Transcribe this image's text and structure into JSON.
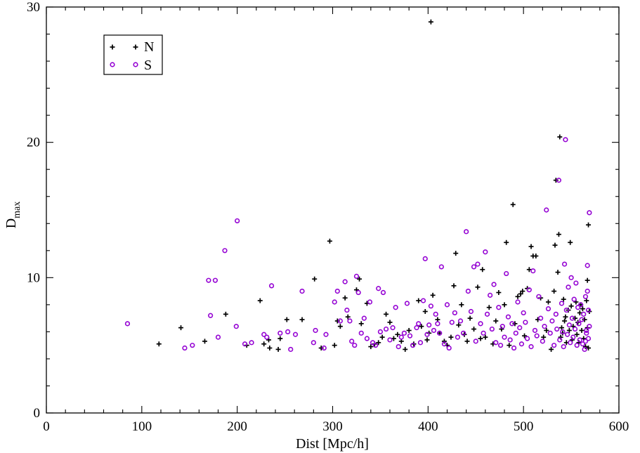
{
  "chart_data": {
    "type": "scatter",
    "title": "",
    "xlabel": "Dist [Mpc/h]",
    "ylabel": "D",
    "ylabel_sub": "max",
    "xlim": [
      0,
      600
    ],
    "ylim": [
      0,
      30
    ],
    "x_ticks": [
      0,
      100,
      200,
      300,
      400,
      500,
      600
    ],
    "y_ticks": [
      0,
      10,
      20,
      30
    ],
    "x_minor_step": 20,
    "y_minor_step": 2,
    "grid": false,
    "legend_position": "top-left",
    "series": [
      {
        "name": "N",
        "marker": "plus",
        "color": "#000000",
        "points": [
          [
            118,
            5.1
          ],
          [
            141,
            6.3
          ],
          [
            166,
            5.3
          ],
          [
            188,
            7.3
          ],
          [
            210,
            5.0
          ],
          [
            224,
            8.3
          ],
          [
            228,
            5.1
          ],
          [
            233,
            5.4
          ],
          [
            234,
            4.8
          ],
          [
            243,
            4.7
          ],
          [
            245,
            5.5
          ],
          [
            252,
            6.9
          ],
          [
            268,
            6.9
          ],
          [
            281,
            9.9
          ],
          [
            288,
            4.8
          ],
          [
            297,
            12.7
          ],
          [
            302,
            5.0
          ],
          [
            305,
            6.8
          ],
          [
            308,
            6.4
          ],
          [
            313,
            8.5
          ],
          [
            316,
            7.1
          ],
          [
            325,
            9.1
          ],
          [
            328,
            9.9
          ],
          [
            330,
            6.6
          ],
          [
            336,
            8.1
          ],
          [
            340,
            4.9
          ],
          [
            344,
            5.1
          ],
          [
            348,
            5.2
          ],
          [
            352,
            5.6
          ],
          [
            356,
            7.3
          ],
          [
            360,
            6.7
          ],
          [
            364,
            5.5
          ],
          [
            368,
            5.8
          ],
          [
            372,
            5.3
          ],
          [
            376,
            4.7
          ],
          [
            380,
            6.1
          ],
          [
            385,
            5.1
          ],
          [
            390,
            8.3
          ],
          [
            393,
            6.4
          ],
          [
            397,
            7.5
          ],
          [
            399,
            5.4
          ],
          [
            401,
            5.9
          ],
          [
            403,
            28.9
          ],
          [
            405,
            8.7
          ],
          [
            410,
            6.9
          ],
          [
            412,
            5.9
          ],
          [
            417,
            5.3
          ],
          [
            420,
            5.0
          ],
          [
            424,
            5.6
          ],
          [
            427,
            9.4
          ],
          [
            429,
            11.8
          ],
          [
            432,
            6.5
          ],
          [
            435,
            8.0
          ],
          [
            438,
            5.8
          ],
          [
            441,
            5.3
          ],
          [
            444,
            7.0
          ],
          [
            448,
            6.2
          ],
          [
            452,
            9.3
          ],
          [
            455,
            5.5
          ],
          [
            457,
            10.6
          ],
          [
            460,
            5.6
          ],
          [
            464,
            7.8
          ],
          [
            468,
            5.1
          ],
          [
            471,
            6.8
          ],
          [
            474,
            8.9
          ],
          [
            477,
            6.2
          ],
          [
            480,
            8.0
          ],
          [
            482,
            12.6
          ],
          [
            485,
            5.0
          ],
          [
            489,
            15.4
          ],
          [
            491,
            6.6
          ],
          [
            494,
            8.6
          ],
          [
            497,
            8.8
          ],
          [
            499,
            9.0
          ],
          [
            501,
            5.7
          ],
          [
            504,
            9.2
          ],
          [
            506,
            10.6
          ],
          [
            508,
            12.3
          ],
          [
            510,
            11.6
          ],
          [
            513,
            11.6
          ],
          [
            515,
            6.9
          ],
          [
            518,
            8.5
          ],
          [
            521,
            5.6
          ],
          [
            524,
            6.1
          ],
          [
            526,
            8.2
          ],
          [
            529,
            4.7
          ],
          [
            532,
            9.0
          ],
          [
            533,
            12.4
          ],
          [
            534,
            17.2
          ],
          [
            536,
            10.4
          ],
          [
            537,
            13.2
          ],
          [
            538,
            20.4
          ],
          [
            539,
            5.6
          ],
          [
            540,
            6.3
          ],
          [
            541,
            5.9
          ],
          [
            542,
            8.4
          ],
          [
            543,
            6.8
          ],
          [
            544,
            7.1
          ],
          [
            545,
            5.2
          ],
          [
            547,
            7.6
          ],
          [
            548,
            6.1
          ],
          [
            549,
            12.6
          ],
          [
            550,
            7.9
          ],
          [
            551,
            5.4
          ],
          [
            552,
            6.4
          ],
          [
            554,
            7.0
          ],
          [
            555,
            8.2
          ],
          [
            556,
            5.8
          ],
          [
            557,
            6.7
          ],
          [
            558,
            5.2
          ],
          [
            559,
            7.4
          ],
          [
            560,
            8.0
          ],
          [
            561,
            6.1
          ],
          [
            562,
            7.7
          ],
          [
            563,
            5.5
          ],
          [
            564,
            6.9
          ],
          [
            565,
            4.9
          ],
          [
            566,
            8.3
          ],
          [
            567,
            9.8
          ],
          [
            568,
            13.9
          ],
          [
            569,
            7.5
          ],
          [
            568,
            4.8
          ],
          [
            567,
            6.3
          ]
        ]
      },
      {
        "name": "S",
        "marker": "circle",
        "color": "#9400D3",
        "points": [
          [
            85,
            6.6
          ],
          [
            145,
            4.8
          ],
          [
            153,
            5.0
          ],
          [
            170,
            9.8
          ],
          [
            172,
            7.2
          ],
          [
            177,
            9.8
          ],
          [
            180,
            5.6
          ],
          [
            187,
            12.0
          ],
          [
            199,
            6.4
          ],
          [
            200,
            14.2
          ],
          [
            208,
            5.1
          ],
          [
            215,
            5.2
          ],
          [
            228,
            5.8
          ],
          [
            231,
            5.6
          ],
          [
            236,
            9.4
          ],
          [
            245,
            5.9
          ],
          [
            253,
            6.0
          ],
          [
            256,
            4.7
          ],
          [
            261,
            5.8
          ],
          [
            268,
            9.0
          ],
          [
            280,
            5.2
          ],
          [
            282,
            6.1
          ],
          [
            291,
            4.8
          ],
          [
            293,
            5.8
          ],
          [
            302,
            8.2
          ],
          [
            305,
            9.0
          ],
          [
            308,
            6.8
          ],
          [
            313,
            9.7
          ],
          [
            315,
            7.6
          ],
          [
            318,
            6.8
          ],
          [
            320,
            5.3
          ],
          [
            323,
            5.0
          ],
          [
            325,
            10.1
          ],
          [
            327,
            8.9
          ],
          [
            330,
            5.9
          ],
          [
            333,
            7.0
          ],
          [
            336,
            5.5
          ],
          [
            339,
            8.2
          ],
          [
            342,
            5.2
          ],
          [
            345,
            5.0
          ],
          [
            348,
            9.2
          ],
          [
            350,
            6.0
          ],
          [
            353,
            8.9
          ],
          [
            356,
            6.2
          ],
          [
            360,
            5.4
          ],
          [
            363,
            6.3
          ],
          [
            366,
            7.8
          ],
          [
            369,
            4.9
          ],
          [
            372,
            5.6
          ],
          [
            375,
            5.9
          ],
          [
            378,
            8.1
          ],
          [
            381,
            5.7
          ],
          [
            384,
            5.0
          ],
          [
            388,
            6.3
          ],
          [
            390,
            6.6
          ],
          [
            392,
            5.2
          ],
          [
            395,
            8.3
          ],
          [
            397,
            11.4
          ],
          [
            399,
            5.8
          ],
          [
            401,
            6.5
          ],
          [
            403,
            7.9
          ],
          [
            406,
            6.1
          ],
          [
            408,
            7.3
          ],
          [
            410,
            6.6
          ],
          [
            412,
            5.9
          ],
          [
            414,
            10.8
          ],
          [
            417,
            5.1
          ],
          [
            420,
            8.0
          ],
          [
            422,
            4.8
          ],
          [
            425,
            6.7
          ],
          [
            428,
            7.4
          ],
          [
            431,
            5.6
          ],
          [
            434,
            6.8
          ],
          [
            437,
            5.9
          ],
          [
            440,
            13.4
          ],
          [
            442,
            9.0
          ],
          [
            445,
            7.5
          ],
          [
            448,
            10.8
          ],
          [
            450,
            5.3
          ],
          [
            452,
            11.0
          ],
          [
            455,
            6.6
          ],
          [
            458,
            5.9
          ],
          [
            460,
            11.9
          ],
          [
            462,
            7.3
          ],
          [
            465,
            8.7
          ],
          [
            467,
            6.2
          ],
          [
            469,
            9.5
          ],
          [
            471,
            5.2
          ],
          [
            474,
            7.8
          ],
          [
            476,
            5.0
          ],
          [
            478,
            6.4
          ],
          [
            480,
            5.6
          ],
          [
            482,
            10.3
          ],
          [
            484,
            7.1
          ],
          [
            486,
            5.4
          ],
          [
            488,
            6.6
          ],
          [
            490,
            4.8
          ],
          [
            492,
            5.9
          ],
          [
            494,
            8.2
          ],
          [
            496,
            6.3
          ],
          [
            498,
            5.1
          ],
          [
            500,
            7.4
          ],
          [
            502,
            6.7
          ],
          [
            504,
            5.5
          ],
          [
            506,
            9.1
          ],
          [
            508,
            4.9
          ],
          [
            510,
            10.5
          ],
          [
            512,
            6.1
          ],
          [
            514,
            5.7
          ],
          [
            516,
            8.6
          ],
          [
            518,
            7.0
          ],
          [
            520,
            5.3
          ],
          [
            522,
            6.4
          ],
          [
            524,
            15.0
          ],
          [
            526,
            7.7
          ],
          [
            528,
            5.9
          ],
          [
            530,
            6.8
          ],
          [
            532,
            5.0
          ],
          [
            534,
            7.3
          ],
          [
            535,
            6.2
          ],
          [
            537,
            17.2
          ],
          [
            538,
            5.4
          ],
          [
            540,
            8.1
          ],
          [
            541,
            6.0
          ],
          [
            542,
            4.9
          ],
          [
            543,
            11.0
          ],
          [
            544,
            20.2
          ],
          [
            545,
            7.6
          ],
          [
            546,
            5.8
          ],
          [
            547,
            9.3
          ],
          [
            548,
            6.5
          ],
          [
            549,
            5.2
          ],
          [
            550,
            10.0
          ],
          [
            551,
            7.0
          ],
          [
            552,
            5.6
          ],
          [
            553,
            8.4
          ],
          [
            554,
            6.2
          ],
          [
            555,
            9.6
          ],
          [
            556,
            5.0
          ],
          [
            557,
            7.8
          ],
          [
            558,
            6.6
          ],
          [
            559,
            5.4
          ],
          [
            560,
            8.0
          ],
          [
            561,
            6.9
          ],
          [
            562,
            5.1
          ],
          [
            563,
            7.3
          ],
          [
            564,
            4.7
          ],
          [
            565,
            8.6
          ],
          [
            566,
            6.1
          ],
          [
            567,
            10.9
          ],
          [
            568,
            5.5
          ],
          [
            569,
            14.8
          ],
          [
            568,
            7.6
          ],
          [
            566,
            5.9
          ],
          [
            569,
            6.4
          ],
          [
            567,
            9.0
          ],
          [
            565,
            5.3
          ]
        ]
      }
    ]
  }
}
